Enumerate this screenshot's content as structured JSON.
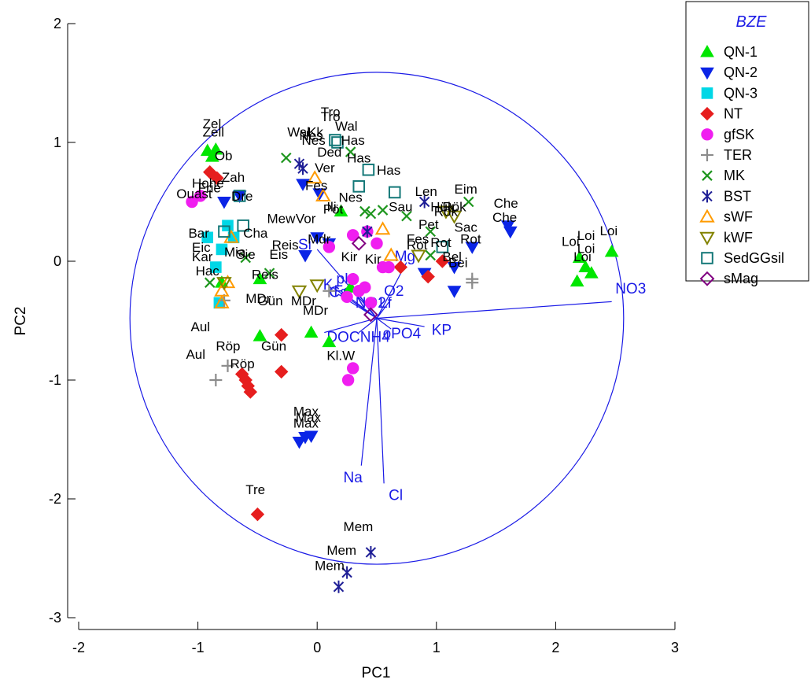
{
  "chart_data": {
    "type": "scatter",
    "xlabel": "PC1",
    "ylabel": "PC2",
    "xlim": [
      -2,
      3
    ],
    "ylim": [
      -3,
      2
    ],
    "xticks": [
      "-2",
      "-1",
      "0",
      "1",
      "2",
      "3"
    ],
    "yticks": [
      "2",
      "1",
      "0",
      "-1",
      "-2",
      "-3"
    ],
    "legend": {
      "title": "BZE",
      "position": "top-right",
      "title_color": "#1a1ae6"
    },
    "circle": {
      "center": [
        0.5,
        -0.48
      ],
      "radius": 2.07,
      "color": "#1a1ae6"
    },
    "vectors": [
      {
        "name": "NO3",
        "x": 2.47,
        "y": -0.34,
        "label_x": 2.5,
        "label_y": -0.27
      },
      {
        "name": "Na",
        "x": 0.37,
        "y": -1.72,
        "label_x": 0.22,
        "label_y": -1.86
      },
      {
        "name": "Cl",
        "x": 0.56,
        "y": -1.87,
        "label_x": 0.6,
        "label_y": -2.01
      },
      {
        "name": "O2",
        "x": 0.62,
        "y": -0.32,
        "label_x": 0.56,
        "label_y": -0.29
      },
      {
        "name": "Lf",
        "x": 0.56,
        "y": -0.37,
        "label_x": 0.52,
        "label_y": -0.39
      },
      {
        "name": "KP",
        "x": 0.9,
        "y": -0.55,
        "label_x": 0.96,
        "label_y": -0.62
      },
      {
        "name": "oPO4",
        "x": 0.62,
        "y": -0.57,
        "label_x": 0.55,
        "label_y": -0.65
      },
      {
        "name": "NH4",
        "x": 0.35,
        "y": -0.6,
        "label_x": 0.36,
        "label_y": -0.68
      },
      {
        "name": "DOC",
        "x": 0.06,
        "y": -0.6,
        "label_x": 0.08,
        "label_y": -0.68
      },
      {
        "name": "NO2",
        "x": 0.36,
        "y": -0.3,
        "label_x": 0.32,
        "label_y": -0.39
      },
      {
        "name": "Fe",
        "x": 0.2,
        "y": -0.25,
        "label_x": 0.14,
        "label_y": -0.29
      },
      {
        "name": "K",
        "x": 0.13,
        "y": -0.22,
        "label_x": 0.05,
        "label_y": -0.24
      },
      {
        "name": "Ca",
        "x": 0.18,
        "y": -0.28,
        "label_x": 0.1,
        "label_y": -0.3
      },
      {
        "name": "Mg",
        "x": 0.75,
        "y": -0.01,
        "label_x": 0.65,
        "label_y": 0.0
      },
      {
        "name": "Si",
        "x": 0.0,
        "y": 0.1,
        "label_x": -0.16,
        "label_y": 0.1
      },
      {
        "name": "pH",
        "x": 0.25,
        "y": -0.15,
        "label_x": 0.16,
        "label_y": -0.19
      }
    ],
    "series": [
      {
        "name": "QN-1",
        "marker": "triangle-up",
        "color": "#00e600",
        "filled": true,
        "points": [
          [
            -0.92,
            0.93,
            "Zel"
          ],
          [
            -0.88,
            0.88,
            "Ob"
          ],
          [
            -0.85,
            0.94,
            "Zell"
          ],
          [
            -0.48,
            -0.63,
            "Aul"
          ],
          [
            -0.48,
            -0.15,
            ""
          ],
          [
            -0.05,
            -0.6,
            "Gün"
          ],
          [
            0.1,
            -0.68,
            "DOC"
          ],
          [
            0.28,
            -0.22,
            ""
          ],
          [
            0.2,
            0.42,
            ""
          ],
          [
            2.18,
            -0.17,
            "Loi"
          ],
          [
            2.2,
            0.03,
            "Loi"
          ],
          [
            2.3,
            -0.1,
            "Loi"
          ],
          [
            2.25,
            -0.05,
            ""
          ],
          [
            2.47,
            0.08,
            "Loi"
          ],
          [
            -0.8,
            -0.18,
            ""
          ]
        ]
      },
      {
        "name": "QN-2",
        "marker": "triangle-down",
        "color": "#0a24e6",
        "filled": true,
        "points": [
          [
            -0.78,
            0.5,
            ""
          ],
          [
            -0.65,
            0.55,
            "Hohe"
          ],
          [
            0.02,
            0.57,
            "Ded"
          ],
          [
            -0.12,
            0.65,
            ""
          ],
          [
            0.1,
            0.15,
            ""
          ],
          [
            -0.1,
            0.05,
            ""
          ],
          [
            1.6,
            0.3,
            "Che"
          ],
          [
            1.62,
            0.25,
            "Che"
          ],
          [
            1.3,
            0.12,
            "Rot"
          ],
          [
            1.15,
            -0.05,
            "Rot"
          ],
          [
            1.15,
            -0.25,
            ""
          ],
          [
            0.9,
            -0.1,
            ""
          ],
          [
            -0.05,
            -1.47,
            "Max"
          ],
          [
            -0.1,
            -1.48,
            "Max"
          ],
          [
            -0.15,
            -1.52,
            "Max"
          ],
          [
            0.0,
            0.2,
            ""
          ]
        ]
      },
      {
        "name": "QN-3",
        "marker": "square",
        "color": "#00d7e6",
        "filled": true,
        "points": [
          [
            -0.92,
            0.2,
            ""
          ],
          [
            -0.8,
            0.1,
            ""
          ],
          [
            -0.85,
            -0.05,
            ""
          ],
          [
            -0.82,
            -0.35,
            ""
          ],
          [
            -0.75,
            0.3,
            ""
          ],
          [
            -0.7,
            0.2,
            ""
          ]
        ]
      },
      {
        "name": "NT",
        "marker": "diamond",
        "color": "#e61e1e",
        "filled": true,
        "points": [
          [
            -0.9,
            0.75,
            "Zah"
          ],
          [
            -0.84,
            0.7,
            ""
          ],
          [
            -0.3,
            -0.62,
            "Gün"
          ],
          [
            -0.3,
            -0.93,
            "Röp"
          ],
          [
            -0.63,
            -0.95,
            "Röp"
          ],
          [
            -0.58,
            -1.05,
            ""
          ],
          [
            -0.56,
            -1.1,
            ""
          ],
          [
            -0.6,
            -1.0,
            ""
          ],
          [
            -0.5,
            -2.13,
            "Tre"
          ],
          [
            0.7,
            -0.05,
            ""
          ],
          [
            0.93,
            -0.13,
            ""
          ],
          [
            1.05,
            0.0,
            ""
          ]
        ]
      },
      {
        "name": "gfSK",
        "marker": "circle",
        "color": "#f01ef0",
        "filled": true,
        "points": [
          [
            -1.05,
            0.5,
            "Ouast"
          ],
          [
            -0.98,
            0.55,
            ""
          ],
          [
            0.3,
            0.22,
            ""
          ],
          [
            0.42,
            0.25,
            ""
          ],
          [
            0.4,
            -0.22,
            ""
          ],
          [
            0.3,
            -0.15,
            ""
          ],
          [
            0.35,
            -0.25,
            ""
          ],
          [
            0.45,
            -0.35,
            ""
          ],
          [
            0.55,
            -0.05,
            ""
          ],
          [
            0.6,
            -0.05,
            ""
          ],
          [
            0.3,
            -0.9,
            "Kl.W"
          ],
          [
            0.26,
            -1.0,
            ""
          ],
          [
            0.1,
            0.12,
            ""
          ],
          [
            0.5,
            0.15,
            ""
          ],
          [
            0.25,
            -0.3,
            ""
          ]
        ]
      },
      {
        "name": "TER",
        "marker": "plus",
        "color": "#8c8c8c",
        "filled": false,
        "points": [
          [
            -0.78,
            -0.33,
            ""
          ],
          [
            -0.75,
            -0.88,
            "Aul"
          ],
          [
            -0.85,
            -1.0,
            ""
          ],
          [
            1.3,
            -0.15,
            "Sac"
          ],
          [
            1.3,
            -0.18,
            ""
          ],
          [
            0.1,
            -0.25,
            ""
          ]
        ]
      },
      {
        "name": "MK",
        "marker": "cross",
        "color": "#1e961e",
        "filled": false,
        "points": [
          [
            -0.9,
            -0.18,
            ""
          ],
          [
            -0.6,
            0.03,
            "Cha"
          ],
          [
            -0.4,
            -0.1,
            "Eis"
          ],
          [
            -0.26,
            0.87,
            "Wal"
          ],
          [
            0.28,
            0.92,
            "Has"
          ],
          [
            0.45,
            0.4,
            ""
          ],
          [
            0.4,
            0.42,
            ""
          ],
          [
            0.55,
            0.43,
            ""
          ],
          [
            0.75,
            0.38,
            ""
          ],
          [
            1.27,
            0.5,
            "Eim"
          ],
          [
            0.95,
            0.25,
            ""
          ],
          [
            0.95,
            0.05,
            ""
          ]
        ]
      },
      {
        "name": "BST",
        "marker": "asterisk",
        "color": "#1e1e96",
        "filled": false,
        "points": [
          [
            -0.15,
            0.82,
            "Nes"
          ],
          [
            -0.12,
            0.78,
            ""
          ],
          [
            0.9,
            0.5,
            "Len"
          ],
          [
            0.42,
            0.25,
            ""
          ],
          [
            0.45,
            -2.45,
            "Mem"
          ],
          [
            0.25,
            -2.62,
            "Mem"
          ],
          [
            0.18,
            -2.74,
            "Mem"
          ]
        ]
      },
      {
        "name": "sWF",
        "marker": "triangle-up",
        "color": "#ff9b00",
        "filled": false,
        "points": [
          [
            -0.72,
            0.2,
            ""
          ],
          [
            -0.75,
            -0.18,
            ""
          ],
          [
            -0.8,
            -0.35,
            ""
          ],
          [
            -0.8,
            -0.25,
            ""
          ],
          [
            -0.02,
            0.7,
            ""
          ],
          [
            0.05,
            0.55,
            ""
          ],
          [
            0.55,
            0.27,
            ""
          ],
          [
            0.62,
            0.05,
            ""
          ]
        ]
      },
      {
        "name": "kWF",
        "marker": "triangle-down",
        "color": "#828200",
        "filled": false,
        "points": [
          [
            -0.78,
            -0.18,
            ""
          ],
          [
            -0.15,
            -0.25,
            ""
          ],
          [
            0.0,
            -0.2,
            ""
          ],
          [
            1.08,
            0.42,
            "Hük"
          ],
          [
            1.15,
            0.38,
            ""
          ],
          [
            0.85,
            0.05,
            ""
          ]
        ]
      },
      {
        "name": "SedGGsil",
        "marker": "square",
        "color": "#147878",
        "filled": false,
        "points": [
          [
            0.15,
            1.02,
            "Tro"
          ],
          [
            0.17,
            1.0,
            ""
          ],
          [
            0.43,
            0.77,
            "Has"
          ],
          [
            0.35,
            0.63,
            ""
          ],
          [
            0.65,
            0.58,
            "Has"
          ],
          [
            -0.62,
            0.3,
            ""
          ],
          [
            -0.65,
            0.55,
            ""
          ],
          [
            -0.78,
            0.25,
            ""
          ],
          [
            1.05,
            0.12,
            ""
          ]
        ]
      },
      {
        "name": "sMag",
        "marker": "diamond",
        "color": "#800080",
        "filled": false,
        "points": [
          [
            0.35,
            0.15,
            ""
          ],
          [
            0.45,
            -0.45,
            ""
          ]
        ]
      }
    ],
    "annotations": [
      {
        "text": "Zel",
        "x": -0.96,
        "y": 1.12
      },
      {
        "text": "Zell",
        "x": -0.96,
        "y": 1.05
      },
      {
        "text": "Ob",
        "x": -0.86,
        "y": 0.85
      },
      {
        "text": "Ouast",
        "x": -1.18,
        "y": 0.53
      },
      {
        "text": "Hohe",
        "x": -1.05,
        "y": 0.62
      },
      {
        "text": "Frie",
        "x": -1.0,
        "y": 0.58
      },
      {
        "text": "Zah",
        "x": -0.8,
        "y": 0.67
      },
      {
        "text": "Dre",
        "x": -0.72,
        "y": 0.51
      },
      {
        "text": "Bar",
        "x": -1.08,
        "y": 0.2
      },
      {
        "text": "Eic",
        "x": -1.05,
        "y": 0.08
      },
      {
        "text": "Cha",
        "x": -0.62,
        "y": 0.2
      },
      {
        "text": "Kar",
        "x": -1.05,
        "y": 0.0
      },
      {
        "text": "Hac",
        "x": -1.02,
        "y": -0.12
      },
      {
        "text": "Mia",
        "x": -0.78,
        "y": 0.04
      },
      {
        "text": "Sie",
        "x": -0.68,
        "y": 0.02
      },
      {
        "text": "Eis",
        "x": -0.4,
        "y": 0.02
      },
      {
        "text": "Reis",
        "x": -0.55,
        "y": -0.15
      },
      {
        "text": "Reis",
        "x": -0.38,
        "y": 0.1
      },
      {
        "text": "MDr",
        "x": -0.6,
        "y": -0.35
      },
      {
        "text": "Gün",
        "x": -0.5,
        "y": -0.37
      },
      {
        "text": "MDr",
        "x": -0.22,
        "y": -0.37
      },
      {
        "text": "MDr",
        "x": -0.12,
        "y": -0.45
      },
      {
        "text": "Aul",
        "x": -1.06,
        "y": -0.59
      },
      {
        "text": "Aul",
        "x": -1.1,
        "y": -0.82
      },
      {
        "text": "Röp",
        "x": -0.85,
        "y": -0.75
      },
      {
        "text": "Röp",
        "x": -0.73,
        "y": -0.9
      },
      {
        "text": "Gün",
        "x": -0.47,
        "y": -0.75
      },
      {
        "text": "Tre",
        "x": -0.6,
        "y": -1.96
      },
      {
        "text": "Max",
        "x": -0.2,
        "y": -1.3
      },
      {
        "text": "Max",
        "x": -0.18,
        "y": -1.35
      },
      {
        "text": "Max",
        "x": -0.2,
        "y": -1.4
      },
      {
        "text": "Mem",
        "x": 0.22,
        "y": -2.27
      },
      {
        "text": "Mem",
        "x": 0.08,
        "y": -2.47
      },
      {
        "text": "Mem",
        "x": -0.02,
        "y": -2.6
      },
      {
        "text": "Kl.W",
        "x": 0.08,
        "y": -0.83
      },
      {
        "text": "Tro",
        "x": 0.03,
        "y": 1.22
      },
      {
        "text": "Tro",
        "x": 0.03,
        "y": 1.18
      },
      {
        "text": "Wal",
        "x": -0.25,
        "y": 1.05
      },
      {
        "text": "Wal",
        "x": 0.15,
        "y": 1.1
      },
      {
        "text": "Kk",
        "x": -0.08,
        "y": 1.05
      },
      {
        "text": "Nes",
        "x": -0.15,
        "y": 1.02
      },
      {
        "text": "Nes",
        "x": -0.13,
        "y": 0.98
      },
      {
        "text": "Ded",
        "x": 0.0,
        "y": 0.88
      },
      {
        "text": "Ver",
        "x": -0.02,
        "y": 0.75
      },
      {
        "text": "Fes",
        "x": -0.1,
        "y": 0.6
      },
      {
        "text": "Has",
        "x": 0.2,
        "y": 0.98
      },
      {
        "text": "Has",
        "x": 0.25,
        "y": 0.83
      },
      {
        "text": "Has",
        "x": 0.5,
        "y": 0.73
      },
      {
        "text": "Nes",
        "x": 0.18,
        "y": 0.5
      },
      {
        "text": "Len",
        "x": 0.82,
        "y": 0.55
      },
      {
        "text": "Eim",
        "x": 1.15,
        "y": 0.57
      },
      {
        "text": "Hük",
        "x": 0.95,
        "y": 0.42
      },
      {
        "text": "Rök",
        "x": 1.05,
        "y": 0.42
      },
      {
        "text": "Sac",
        "x": 1.15,
        "y": 0.25
      },
      {
        "text": "Rot",
        "x": 1.2,
        "y": 0.15
      },
      {
        "text": "Rot",
        "x": 0.95,
        "y": 0.12
      },
      {
        "text": "Fes",
        "x": 0.75,
        "y": 0.15
      },
      {
        "text": "Sau",
        "x": 0.6,
        "y": 0.42
      },
      {
        "text": "Bei",
        "x": 1.1,
        "y": -0.05
      },
      {
        "text": "Che",
        "x": 1.48,
        "y": 0.45
      },
      {
        "text": "Che",
        "x": 1.47,
        "y": 0.33
      },
      {
        "text": "Loi",
        "x": 2.05,
        "y": 0.13
      },
      {
        "text": "Loi",
        "x": 2.18,
        "y": 0.18
      },
      {
        "text": "Loi",
        "x": 2.37,
        "y": 0.22
      },
      {
        "text": "Loi",
        "x": 2.15,
        "y": 0.0
      },
      {
        "text": "Loi",
        "x": 2.18,
        "y": 0.07
      },
      {
        "text": "Mew",
        "x": -0.42,
        "y": 0.32
      },
      {
        "text": "Vor",
        "x": -0.18,
        "y": 0.32
      },
      {
        "text": "Mdr",
        "x": -0.08,
        "y": 0.15
      },
      {
        "text": "Pöt",
        "x": 0.05,
        "y": 0.4
      },
      {
        "text": "Ili",
        "x": 0.08,
        "y": 0.42
      },
      {
        "text": "Kir",
        "x": 0.2,
        "y": 0.0
      },
      {
        "text": "Kir",
        "x": 0.4,
        "y": -0.02
      },
      {
        "text": "Rot",
        "x": 0.75,
        "y": 0.1
      },
      {
        "text": "Bel",
        "x": 1.05,
        "y": 0.0
      },
      {
        "text": "Pet",
        "x": 0.85,
        "y": 0.27
      },
      {
        "text": "Rök",
        "x": 0.98,
        "y": 0.38
      }
    ]
  }
}
